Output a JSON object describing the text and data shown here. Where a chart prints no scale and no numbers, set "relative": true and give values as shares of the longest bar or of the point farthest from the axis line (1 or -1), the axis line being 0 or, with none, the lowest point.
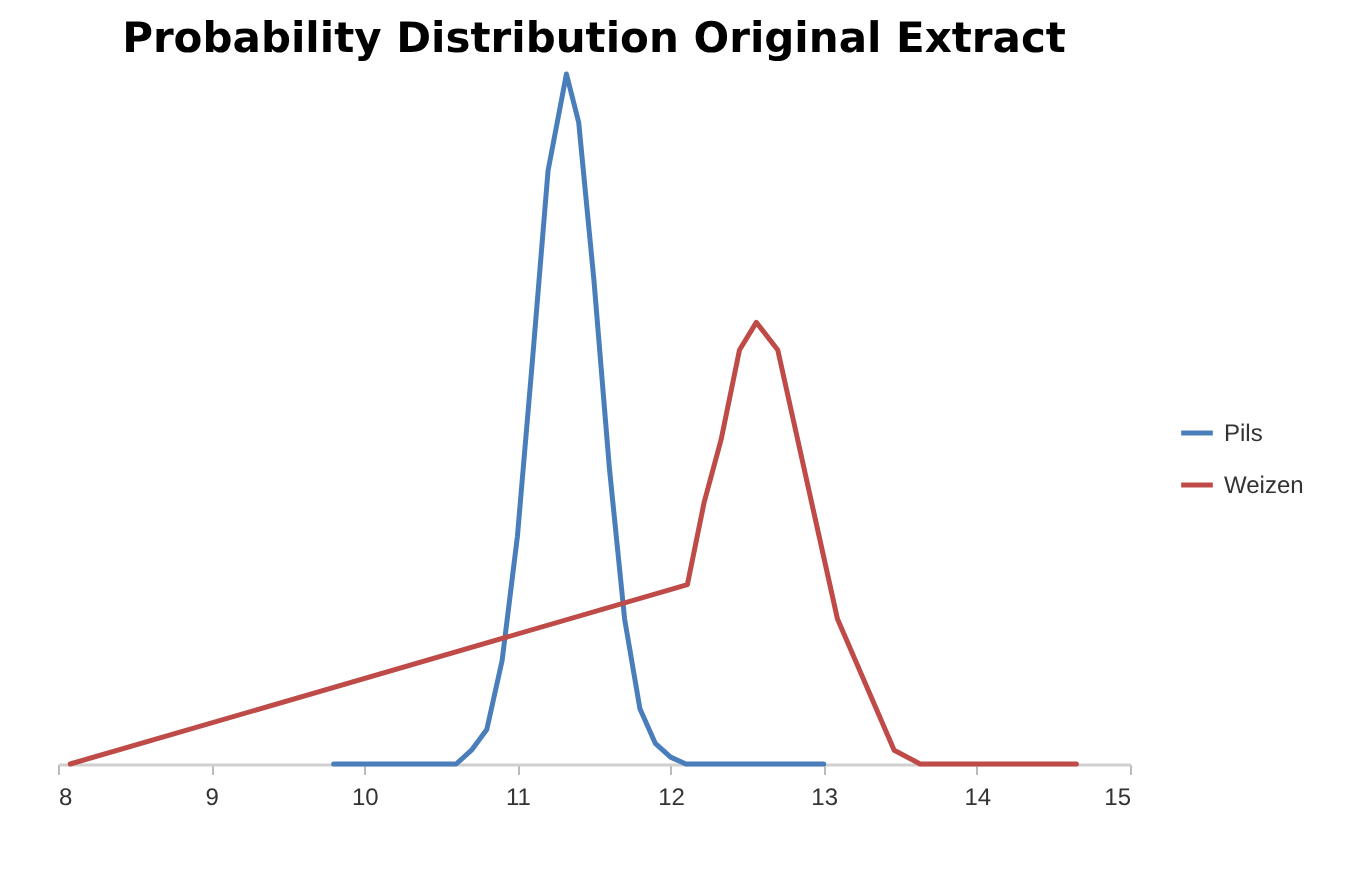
{
  "chart_data": {
    "type": "line",
    "title": "Probability Distribution Original Extract",
    "relative": true,
    "legend": "right",
    "xlim": [
      8,
      15
    ],
    "xticks": [
      8,
      9,
      10,
      11,
      12,
      13,
      14,
      15
    ],
    "series": [
      {
        "name": "Pils",
        "color": "#4a7ebb",
        "x": [
          9.8,
          10.6,
          10.7,
          10.8,
          10.9,
          11.0,
          11.1,
          11.2,
          11.32,
          11.4,
          11.5,
          11.6,
          11.7,
          11.8,
          11.9,
          12.0,
          12.1,
          13.0
        ],
        "values": [
          0,
          0,
          0.02,
          0.05,
          0.15,
          0.33,
          0.59,
          0.86,
          1,
          0.93,
          0.7,
          0.43,
          0.21,
          0.08,
          0.03,
          0.01,
          0,
          0
        ]
      },
      {
        "name": "Weizen",
        "color": "#be4b48",
        "x": [
          8.08,
          12.11,
          12.22,
          12.33,
          12.45,
          12.56,
          12.7,
          12.8,
          12.96,
          13.09,
          13.46,
          13.63,
          14.65
        ],
        "values": [
          0,
          0.26,
          0.38,
          0.47,
          0.6,
          0.64,
          0.6,
          0.5,
          0.34,
          0.21,
          0.02,
          0,
          0
        ]
      }
    ]
  }
}
